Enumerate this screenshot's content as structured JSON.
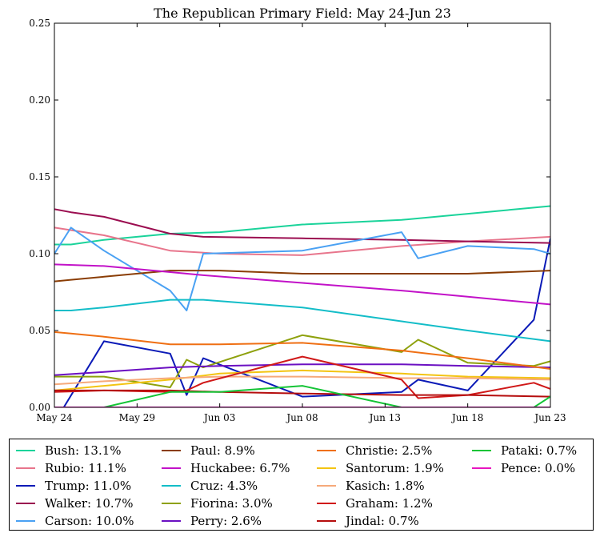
{
  "chart_data": {
    "type": "line",
    "title": "The Republican Primary Field: May 24-Jun 23",
    "xlabel": "",
    "ylabel": "",
    "x_range_days": [
      "2015-05-24",
      "2015-06-23"
    ],
    "x_ticks": [
      {
        "day": "2015-05-24",
        "label": "May 24"
      },
      {
        "day": "2015-05-29",
        "label": "May 29"
      },
      {
        "day": "2015-06-03",
        "label": "Jun 03"
      },
      {
        "day": "2015-06-08",
        "label": "Jun 08"
      },
      {
        "day": "2015-06-13",
        "label": "Jun 13"
      },
      {
        "day": "2015-06-18",
        "label": "Jun 18"
      },
      {
        "day": "2015-06-23",
        "label": "Jun 23"
      }
    ],
    "ylim": [
      0,
      0.25
    ],
    "y_ticks": [
      {
        "value": 0,
        "label": "0.00"
      },
      {
        "value": 0.05,
        "label": "0.05"
      },
      {
        "value": 0.1,
        "label": "0.10"
      },
      {
        "value": 0.15,
        "label": "0.15"
      },
      {
        "value": 0.2,
        "label": "0.20"
      },
      {
        "value": 0.25,
        "label": "0.25"
      }
    ],
    "grid": false,
    "legend_position": "below",
    "series": [
      {
        "name": "Bush: 13.1%",
        "color": "#1ad39a",
        "points": [
          [
            "2015-05-24",
            0.106
          ],
          [
            "2015-05-25",
            0.106
          ],
          [
            "2015-05-27",
            0.109
          ],
          [
            "2015-05-31",
            0.113
          ],
          [
            "2015-06-03",
            0.114
          ],
          [
            "2015-06-08",
            0.119
          ],
          [
            "2015-06-14",
            0.122
          ],
          [
            "2015-06-18",
            0.126
          ],
          [
            "2015-06-23",
            0.131
          ]
        ]
      },
      {
        "name": "Rubio: 11.1%",
        "color": "#e8758c",
        "points": [
          [
            "2015-05-24",
            0.117
          ],
          [
            "2015-05-27",
            0.112
          ],
          [
            "2015-05-31",
            0.102
          ],
          [
            "2015-06-03",
            0.1
          ],
          [
            "2015-06-08",
            0.099
          ],
          [
            "2015-06-14",
            0.105
          ],
          [
            "2015-06-18",
            0.108
          ],
          [
            "2015-06-23",
            0.111
          ]
        ]
      },
      {
        "name": "Trump: 11.0%",
        "color": "#0b1ab7",
        "points": [
          [
            "2015-05-24",
            -0.01
          ],
          [
            "2015-05-27",
            0.043
          ],
          [
            "2015-05-31",
            0.035
          ],
          [
            "2015-06-01",
            0.008
          ],
          [
            "2015-06-02",
            0.032
          ],
          [
            "2015-06-08",
            0.007
          ],
          [
            "2015-06-14",
            0.01
          ],
          [
            "2015-06-15",
            0.018
          ],
          [
            "2015-06-18",
            0.011
          ],
          [
            "2015-06-22",
            0.057
          ],
          [
            "2015-06-23",
            0.11
          ]
        ]
      },
      {
        "name": "Walker: 10.7%",
        "color": "#9b0d50",
        "points": [
          [
            "2015-05-24",
            0.129
          ],
          [
            "2015-05-25",
            0.127
          ],
          [
            "2015-05-27",
            0.124
          ],
          [
            "2015-05-31",
            0.113
          ],
          [
            "2015-06-02",
            0.111
          ],
          [
            "2015-06-08",
            0.11
          ],
          [
            "2015-06-14",
            0.109
          ],
          [
            "2015-06-18",
            0.108
          ],
          [
            "2015-06-23",
            0.107
          ]
        ]
      },
      {
        "name": "Carson: 10.0%",
        "color": "#4aa1f3",
        "points": [
          [
            "2015-05-24",
            0.1
          ],
          [
            "2015-05-25",
            0.117
          ],
          [
            "2015-05-27",
            0.102
          ],
          [
            "2015-05-31",
            0.076
          ],
          [
            "2015-06-01",
            0.063
          ],
          [
            "2015-06-02",
            0.1
          ],
          [
            "2015-06-08",
            0.102
          ],
          [
            "2015-06-14",
            0.114
          ],
          [
            "2015-06-15",
            0.097
          ],
          [
            "2015-06-18",
            0.105
          ],
          [
            "2015-06-22",
            0.103
          ],
          [
            "2015-06-23",
            0.1
          ]
        ]
      },
      {
        "name": "Paul: 8.9%",
        "color": "#8a3d05",
        "points": [
          [
            "2015-05-24",
            0.082
          ],
          [
            "2015-05-25",
            0.083
          ],
          [
            "2015-05-27",
            0.085
          ],
          [
            "2015-05-31",
            0.089
          ],
          [
            "2015-06-03",
            0.089
          ],
          [
            "2015-06-08",
            0.087
          ],
          [
            "2015-06-14",
            0.087
          ],
          [
            "2015-06-18",
            0.087
          ],
          [
            "2015-06-23",
            0.089
          ]
        ]
      },
      {
        "name": "Huckabee: 6.7%",
        "color": "#c212c8",
        "points": [
          [
            "2015-05-24",
            0.093
          ],
          [
            "2015-05-27",
            0.092
          ],
          [
            "2015-05-31",
            0.088
          ],
          [
            "2015-06-02",
            0.086
          ],
          [
            "2015-06-08",
            0.081
          ],
          [
            "2015-06-14",
            0.076
          ],
          [
            "2015-06-18",
            0.072
          ],
          [
            "2015-06-23",
            0.067
          ]
        ]
      },
      {
        "name": "Cruz: 4.3%",
        "color": "#13bdc8",
        "points": [
          [
            "2015-05-24",
            0.063
          ],
          [
            "2015-05-25",
            0.063
          ],
          [
            "2015-05-27",
            0.065
          ],
          [
            "2015-05-31",
            0.07
          ],
          [
            "2015-06-02",
            0.07
          ],
          [
            "2015-06-08",
            0.065
          ],
          [
            "2015-06-14",
            0.056
          ],
          [
            "2015-06-18",
            0.05
          ],
          [
            "2015-06-23",
            0.043
          ]
        ]
      },
      {
        "name": "Fiorina: 3.0%",
        "color": "#8ea10c",
        "points": [
          [
            "2015-05-24",
            0.02
          ],
          [
            "2015-05-27",
            0.02
          ],
          [
            "2015-05-31",
            0.013
          ],
          [
            "2015-06-01",
            0.031
          ],
          [
            "2015-06-02",
            0.026
          ],
          [
            "2015-06-08",
            0.047
          ],
          [
            "2015-06-14",
            0.036
          ],
          [
            "2015-06-15",
            0.044
          ],
          [
            "2015-06-18",
            0.029
          ],
          [
            "2015-06-22",
            0.027
          ],
          [
            "2015-06-23",
            0.03
          ]
        ]
      },
      {
        "name": "Perry: 2.6%",
        "color": "#6b10c2",
        "points": [
          [
            "2015-05-24",
            0.021
          ],
          [
            "2015-05-27",
            0.023
          ],
          [
            "2015-05-31",
            0.026
          ],
          [
            "2015-06-03",
            0.027
          ],
          [
            "2015-06-08",
            0.028
          ],
          [
            "2015-06-14",
            0.028
          ],
          [
            "2015-06-18",
            0.027
          ],
          [
            "2015-06-23",
            0.026
          ]
        ]
      },
      {
        "name": "Christie: 2.5%",
        "color": "#ef6f13",
        "points": [
          [
            "2015-05-24",
            0.049
          ],
          [
            "2015-05-25",
            0.048
          ],
          [
            "2015-05-27",
            0.046
          ],
          [
            "2015-05-31",
            0.041
          ],
          [
            "2015-06-03",
            0.041
          ],
          [
            "2015-06-08",
            0.042
          ],
          [
            "2015-06-14",
            0.037
          ],
          [
            "2015-06-18",
            0.032
          ],
          [
            "2015-06-23",
            0.025
          ]
        ]
      },
      {
        "name": "Santorum: 1.9%",
        "color": "#f3c412",
        "points": [
          [
            "2015-05-24",
            0.011
          ],
          [
            "2015-05-27",
            0.014
          ],
          [
            "2015-05-31",
            0.018
          ],
          [
            "2015-06-03",
            0.022
          ],
          [
            "2015-06-08",
            0.024
          ],
          [
            "2015-06-14",
            0.022
          ],
          [
            "2015-06-18",
            0.02
          ],
          [
            "2015-06-23",
            0.019
          ]
        ]
      },
      {
        "name": "Kasich: 1.8%",
        "color": "#f6a97a",
        "points": [
          [
            "2015-05-24",
            0.015
          ],
          [
            "2015-05-27",
            0.017
          ],
          [
            "2015-05-31",
            0.019
          ],
          [
            "2015-06-03",
            0.02
          ],
          [
            "2015-06-08",
            0.02
          ],
          [
            "2015-06-14",
            0.019
          ],
          [
            "2015-06-18",
            0.019
          ],
          [
            "2015-06-23",
            0.018
          ]
        ]
      },
      {
        "name": "Graham: 1.2%",
        "color": "#d01818",
        "points": [
          [
            "2015-05-24",
            0.01
          ],
          [
            "2015-05-27",
            0.011
          ],
          [
            "2015-05-31",
            0.01
          ],
          [
            "2015-06-01",
            0.011
          ],
          [
            "2015-06-02",
            0.016
          ],
          [
            "2015-06-08",
            0.033
          ],
          [
            "2015-06-14",
            0.018
          ],
          [
            "2015-06-15",
            0.006
          ],
          [
            "2015-06-18",
            0.008
          ],
          [
            "2015-06-22",
            0.016
          ],
          [
            "2015-06-23",
            0.012
          ]
        ]
      },
      {
        "name": "Jindal: 0.7%",
        "color": "#b50d0d",
        "points": [
          [
            "2015-05-24",
            0.011
          ],
          [
            "2015-05-27",
            0.011
          ],
          [
            "2015-05-31",
            0.011
          ],
          [
            "2015-06-03",
            0.01
          ],
          [
            "2015-06-08",
            0.009
          ],
          [
            "2015-06-14",
            0.008
          ],
          [
            "2015-06-18",
            0.008
          ],
          [
            "2015-06-23",
            0.007
          ]
        ]
      },
      {
        "name": "Pataki: 0.7%",
        "color": "#14c436",
        "points": [
          [
            "2015-05-24",
            -0.005
          ],
          [
            "2015-05-27",
            0.0
          ],
          [
            "2015-05-31",
            0.01
          ],
          [
            "2015-06-03",
            0.01
          ],
          [
            "2015-06-08",
            0.014
          ],
          [
            "2015-06-14",
            0.0
          ],
          [
            "2015-06-18",
            0.0
          ],
          [
            "2015-06-22",
            0.0
          ],
          [
            "2015-06-23",
            0.007
          ]
        ]
      },
      {
        "name": "Pence: 0.0%",
        "color": "#e815c0",
        "points": [
          [
            "2015-05-24",
            0.0
          ],
          [
            "2015-06-23",
            0.0
          ]
        ]
      }
    ]
  }
}
